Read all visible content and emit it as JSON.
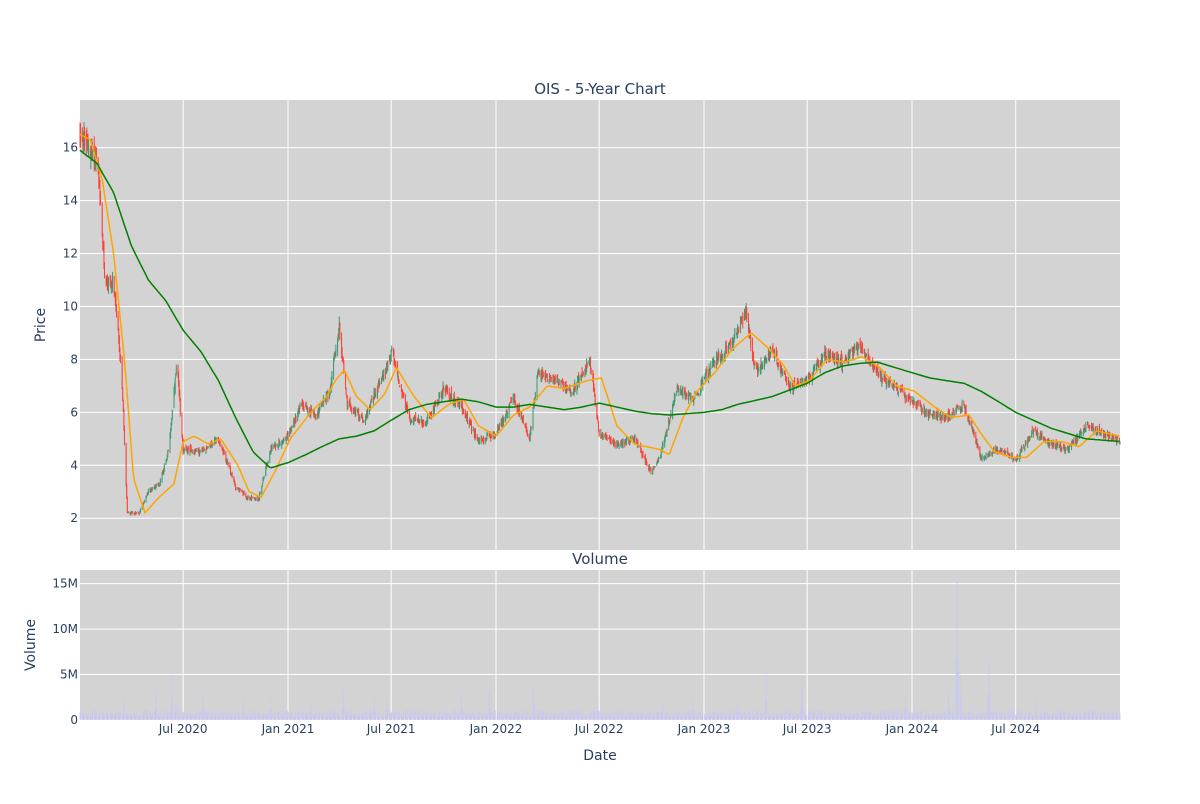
{
  "colors": {
    "plot_bg": "#d3d3d3",
    "grid": "#ffffff",
    "increasing": "#3d9970",
    "decreasing": "#ff4136",
    "ma_short": "#ffa500",
    "ma_long": "#008000",
    "volume": "#c9c9ee",
    "text": "#2a3f5f"
  },
  "chart_data": [
    {
      "type": "candlestick",
      "title": "OIS - 5-Year Chart",
      "xlabel": "",
      "ylabel": "Price",
      "x_range": [
        "2020-01-02",
        "2024-12-31"
      ],
      "ylim": [
        0.8,
        17.8
      ],
      "y_ticks": [
        2,
        4,
        6,
        8,
        10,
        12,
        14,
        16
      ],
      "x_ticks": [
        "2020-07-01",
        "2021-01-01",
        "2021-07-01",
        "2022-01-01",
        "2022-07-01",
        "2023-01-01",
        "2023-07-01",
        "2024-01-01",
        "2024-07-01"
      ],
      "x_tick_labels": [
        "Jul 2020",
        "Jan 2021",
        "Jul 2021",
        "Jan 2022",
        "Jul 2022",
        "Jan 2023",
        "Jul 2023",
        "Jan 2024",
        "Jul 2024"
      ],
      "grid": true,
      "legend": "none",
      "price_path": [
        [
          "2020-01-02",
          16.6
        ],
        [
          "2020-01-15",
          16.0
        ],
        [
          "2020-02-01",
          15.6
        ],
        [
          "2020-02-15",
          11.0
        ],
        [
          "2020-03-01",
          10.8
        ],
        [
          "2020-03-15",
          7.5
        ],
        [
          "2020-03-25",
          2.2
        ],
        [
          "2020-04-15",
          2.2
        ],
        [
          "2020-05-01",
          3.0
        ],
        [
          "2020-05-20",
          3.3
        ],
        [
          "2020-06-05",
          4.5
        ],
        [
          "2020-06-20",
          7.8
        ],
        [
          "2020-07-01",
          4.6
        ],
        [
          "2020-08-01",
          4.5
        ],
        [
          "2020-09-01",
          5.0
        ],
        [
          "2020-10-01",
          3.2
        ],
        [
          "2020-10-20",
          2.8
        ],
        [
          "2020-11-10",
          2.7
        ],
        [
          "2020-12-01",
          4.6
        ],
        [
          "2021-01-01",
          5.1
        ],
        [
          "2021-01-25",
          6.3
        ],
        [
          "2021-02-20",
          5.9
        ],
        [
          "2021-03-15",
          6.8
        ],
        [
          "2021-04-01",
          9.2
        ],
        [
          "2021-04-15",
          6.3
        ],
        [
          "2021-05-15",
          5.7
        ],
        [
          "2021-06-01",
          6.7
        ],
        [
          "2021-06-20",
          7.5
        ],
        [
          "2021-07-01",
          8.3
        ],
        [
          "2021-08-01",
          5.8
        ],
        [
          "2021-09-01",
          5.6
        ],
        [
          "2021-10-01",
          6.9
        ],
        [
          "2021-11-01",
          6.2
        ],
        [
          "2021-12-01",
          4.9
        ],
        [
          "2022-01-01",
          5.2
        ],
        [
          "2022-02-01",
          6.5
        ],
        [
          "2022-03-01",
          5.0
        ],
        [
          "2022-03-15",
          7.5
        ],
        [
          "2022-04-15",
          7.2
        ],
        [
          "2022-05-15",
          6.8
        ],
        [
          "2022-06-15",
          8.0
        ],
        [
          "2022-07-01",
          5.2
        ],
        [
          "2022-08-01",
          4.8
        ],
        [
          "2022-09-01",
          5.0
        ],
        [
          "2022-10-01",
          3.7
        ],
        [
          "2022-10-15",
          4.3
        ],
        [
          "2022-11-15",
          6.9
        ],
        [
          "2022-12-15",
          6.5
        ],
        [
          "2023-01-15",
          7.8
        ],
        [
          "2023-02-15",
          8.5
        ],
        [
          "2023-03-15",
          9.8
        ],
        [
          "2023-04-01",
          7.6
        ],
        [
          "2023-05-01",
          8.3
        ],
        [
          "2023-06-01",
          6.9
        ],
        [
          "2023-07-01",
          7.2
        ],
        [
          "2023-08-01",
          8.2
        ],
        [
          "2023-09-01",
          7.9
        ],
        [
          "2023-10-01",
          8.5
        ],
        [
          "2023-11-01",
          7.5
        ],
        [
          "2023-12-01",
          7.0
        ],
        [
          "2024-01-01",
          6.4
        ],
        [
          "2024-02-01",
          5.9
        ],
        [
          "2024-03-01",
          5.8
        ],
        [
          "2024-04-01",
          6.3
        ],
        [
          "2024-05-01",
          4.3
        ],
        [
          "2024-06-01",
          4.6
        ],
        [
          "2024-07-01",
          4.2
        ],
        [
          "2024-08-01",
          5.3
        ],
        [
          "2024-09-01",
          4.8
        ],
        [
          "2024-10-01",
          4.6
        ],
        [
          "2024-11-01",
          5.5
        ],
        [
          "2024-12-01",
          5.2
        ],
        [
          "2024-12-31",
          4.9
        ]
      ],
      "ma_short_path": [
        [
          "2020-01-02",
          16.5
        ],
        [
          "2020-01-20",
          16.3
        ],
        [
          "2020-02-10",
          14.8
        ],
        [
          "2020-03-01",
          12.0
        ],
        [
          "2020-03-20",
          8.0
        ],
        [
          "2020-04-05",
          3.5
        ],
        [
          "2020-04-25",
          2.2
        ],
        [
          "2020-05-20",
          2.8
        ],
        [
          "2020-06-15",
          3.3
        ],
        [
          "2020-07-01",
          4.9
        ],
        [
          "2020-07-20",
          5.1
        ],
        [
          "2020-08-15",
          4.8
        ],
        [
          "2020-09-05",
          5.0
        ],
        [
          "2020-10-05",
          4.0
        ],
        [
          "2020-10-25",
          3.0
        ],
        [
          "2020-11-15",
          2.8
        ],
        [
          "2020-12-10",
          3.8
        ],
        [
          "2021-01-05",
          5.0
        ],
        [
          "2021-02-10",
          6.0
        ],
        [
          "2021-03-10",
          6.6
        ],
        [
          "2021-03-25",
          7.2
        ],
        [
          "2021-04-10",
          7.6
        ],
        [
          "2021-05-01",
          6.6
        ],
        [
          "2021-05-25",
          6.1
        ],
        [
          "2021-06-20",
          6.7
        ],
        [
          "2021-07-10",
          7.7
        ],
        [
          "2021-08-10",
          6.6
        ],
        [
          "2021-09-10",
          5.8
        ],
        [
          "2021-10-10",
          6.3
        ],
        [
          "2021-11-05",
          6.5
        ],
        [
          "2021-12-01",
          5.5
        ],
        [
          "2022-01-01",
          5.1
        ],
        [
          "2022-02-01",
          5.9
        ],
        [
          "2022-03-01",
          6.2
        ],
        [
          "2022-04-01",
          7.0
        ],
        [
          "2022-05-01",
          6.9
        ],
        [
          "2022-06-10",
          7.2
        ],
        [
          "2022-07-05",
          7.3
        ],
        [
          "2022-08-01",
          5.5
        ],
        [
          "2022-09-01",
          4.8
        ],
        [
          "2022-10-15",
          4.6
        ],
        [
          "2022-11-01",
          4.4
        ],
        [
          "2022-11-25",
          5.8
        ],
        [
          "2022-12-20",
          6.8
        ],
        [
          "2023-01-20",
          7.5
        ],
        [
          "2023-02-20",
          8.4
        ],
        [
          "2023-03-25",
          9.0
        ],
        [
          "2023-04-25",
          8.4
        ],
        [
          "2023-05-20",
          7.8
        ],
        [
          "2023-06-10",
          7.0
        ],
        [
          "2023-07-05",
          7.2
        ],
        [
          "2023-08-05",
          8.0
        ],
        [
          "2023-09-05",
          7.9
        ],
        [
          "2023-10-05",
          8.1
        ],
        [
          "2023-11-05",
          7.7
        ],
        [
          "2023-12-05",
          7.0
        ],
        [
          "2024-01-05",
          6.8
        ],
        [
          "2024-02-10",
          6.2
        ],
        [
          "2024-03-10",
          5.8
        ],
        [
          "2024-04-10",
          5.9
        ],
        [
          "2024-05-01",
          5.2
        ],
        [
          "2024-05-25",
          4.5
        ],
        [
          "2024-06-25",
          4.3
        ],
        [
          "2024-07-20",
          4.3
        ],
        [
          "2024-08-20",
          4.9
        ],
        [
          "2024-09-20",
          4.9
        ],
        [
          "2024-10-20",
          4.7
        ],
        [
          "2024-11-20",
          5.3
        ],
        [
          "2024-12-31",
          5.1
        ]
      ],
      "ma_long_path": [
        [
          "2020-01-02",
          15.9
        ],
        [
          "2020-02-01",
          15.4
        ],
        [
          "2020-03-01",
          14.3
        ],
        [
          "2020-04-01",
          12.3
        ],
        [
          "2020-05-01",
          11.0
        ],
        [
          "2020-06-01",
          10.2
        ],
        [
          "2020-07-01",
          9.1
        ],
        [
          "2020-08-01",
          8.3
        ],
        [
          "2020-09-01",
          7.2
        ],
        [
          "2020-10-01",
          5.8
        ],
        [
          "2020-11-01",
          4.5
        ],
        [
          "2020-12-01",
          3.9
        ],
        [
          "2021-01-01",
          4.1
        ],
        [
          "2021-02-01",
          4.4
        ],
        [
          "2021-03-01",
          4.7
        ],
        [
          "2021-04-01",
          5.0
        ],
        [
          "2021-05-01",
          5.1
        ],
        [
          "2021-06-01",
          5.3
        ],
        [
          "2021-07-01",
          5.7
        ],
        [
          "2021-08-01",
          6.1
        ],
        [
          "2021-09-01",
          6.3
        ],
        [
          "2021-10-01",
          6.4
        ],
        [
          "2021-11-01",
          6.5
        ],
        [
          "2021-12-01",
          6.4
        ],
        [
          "2022-01-01",
          6.2
        ],
        [
          "2022-02-01",
          6.2
        ],
        [
          "2022-03-01",
          6.3
        ],
        [
          "2022-04-01",
          6.2
        ],
        [
          "2022-05-01",
          6.1
        ],
        [
          "2022-06-01",
          6.2
        ],
        [
          "2022-07-01",
          6.35
        ],
        [
          "2022-08-01",
          6.2
        ],
        [
          "2022-09-01",
          6.05
        ],
        [
          "2022-10-01",
          5.95
        ],
        [
          "2022-11-01",
          5.9
        ],
        [
          "2022-12-01",
          5.95
        ],
        [
          "2023-01-01",
          6.0
        ],
        [
          "2023-02-01",
          6.1
        ],
        [
          "2023-03-01",
          6.3
        ],
        [
          "2023-04-01",
          6.45
        ],
        [
          "2023-05-01",
          6.6
        ],
        [
          "2023-06-01",
          6.85
        ],
        [
          "2023-07-01",
          7.1
        ],
        [
          "2023-08-01",
          7.5
        ],
        [
          "2023-09-01",
          7.75
        ],
        [
          "2023-10-01",
          7.85
        ],
        [
          "2023-11-01",
          7.9
        ],
        [
          "2023-12-01",
          7.7
        ],
        [
          "2024-01-01",
          7.5
        ],
        [
          "2024-02-01",
          7.3
        ],
        [
          "2024-03-01",
          7.2
        ],
        [
          "2024-04-01",
          7.1
        ],
        [
          "2024-05-01",
          6.8
        ],
        [
          "2024-06-01",
          6.4
        ],
        [
          "2024-07-01",
          6.0
        ],
        [
          "2024-08-01",
          5.7
        ],
        [
          "2024-09-01",
          5.4
        ],
        [
          "2024-10-01",
          5.2
        ],
        [
          "2024-11-01",
          5.0
        ],
        [
          "2024-12-31",
          4.9
        ]
      ]
    },
    {
      "type": "bar",
      "title": "Volume",
      "xlabel": "Date",
      "ylabel": "Volume",
      "ylim": [
        0,
        16500000
      ],
      "y_ticks": [
        0,
        5000000,
        10000000,
        15000000
      ],
      "y_tick_labels": [
        "0",
        "5M",
        "10M",
        "15M"
      ],
      "x_ticks": [
        "2020-07-01",
        "2021-01-01",
        "2021-07-01",
        "2022-01-01",
        "2022-07-01",
        "2023-01-01",
        "2023-07-01",
        "2024-01-01",
        "2024-07-01"
      ],
      "x_tick_labels": [
        "Jul 2020",
        "Jan 2021",
        "Jul 2021",
        "Jan 2022",
        "Jul 2022",
        "Jan 2023",
        "Jul 2023",
        "Jan 2024",
        "Jul 2024"
      ],
      "grid": true,
      "baseline_volume": 800000,
      "spikes": [
        [
          "2020-03-20",
          2400000
        ],
        [
          "2020-04-25",
          2500000
        ],
        [
          "2020-05-15",
          3000000
        ],
        [
          "2020-06-12",
          5000000
        ],
        [
          "2020-06-20",
          3800000
        ],
        [
          "2020-08-05",
          2800000
        ],
        [
          "2020-10-15",
          2400000
        ],
        [
          "2020-12-01",
          2500000
        ],
        [
          "2021-02-10",
          1800000
        ],
        [
          "2021-04-08",
          3300000
        ],
        [
          "2021-06-01",
          2600000
        ],
        [
          "2021-06-25",
          2500000
        ],
        [
          "2021-11-01",
          2800000
        ],
        [
          "2021-12-20",
          3000000
        ],
        [
          "2022-03-08",
          3800000
        ],
        [
          "2022-06-28",
          2300000
        ],
        [
          "2022-10-20",
          1900000
        ],
        [
          "2022-12-12",
          2400000
        ],
        [
          "2023-03-01",
          2000000
        ],
        [
          "2023-04-20",
          5000000
        ],
        [
          "2023-06-22",
          3800000
        ],
        [
          "2023-10-15",
          2000000
        ],
        [
          "2023-12-20",
          2500000
        ],
        [
          "2024-03-05",
          3000000
        ],
        [
          "2024-03-20",
          15200000
        ],
        [
          "2024-03-25",
          5500000
        ],
        [
          "2024-05-15",
          6300000
        ],
        [
          "2024-08-05",
          2300000
        ]
      ]
    }
  ]
}
